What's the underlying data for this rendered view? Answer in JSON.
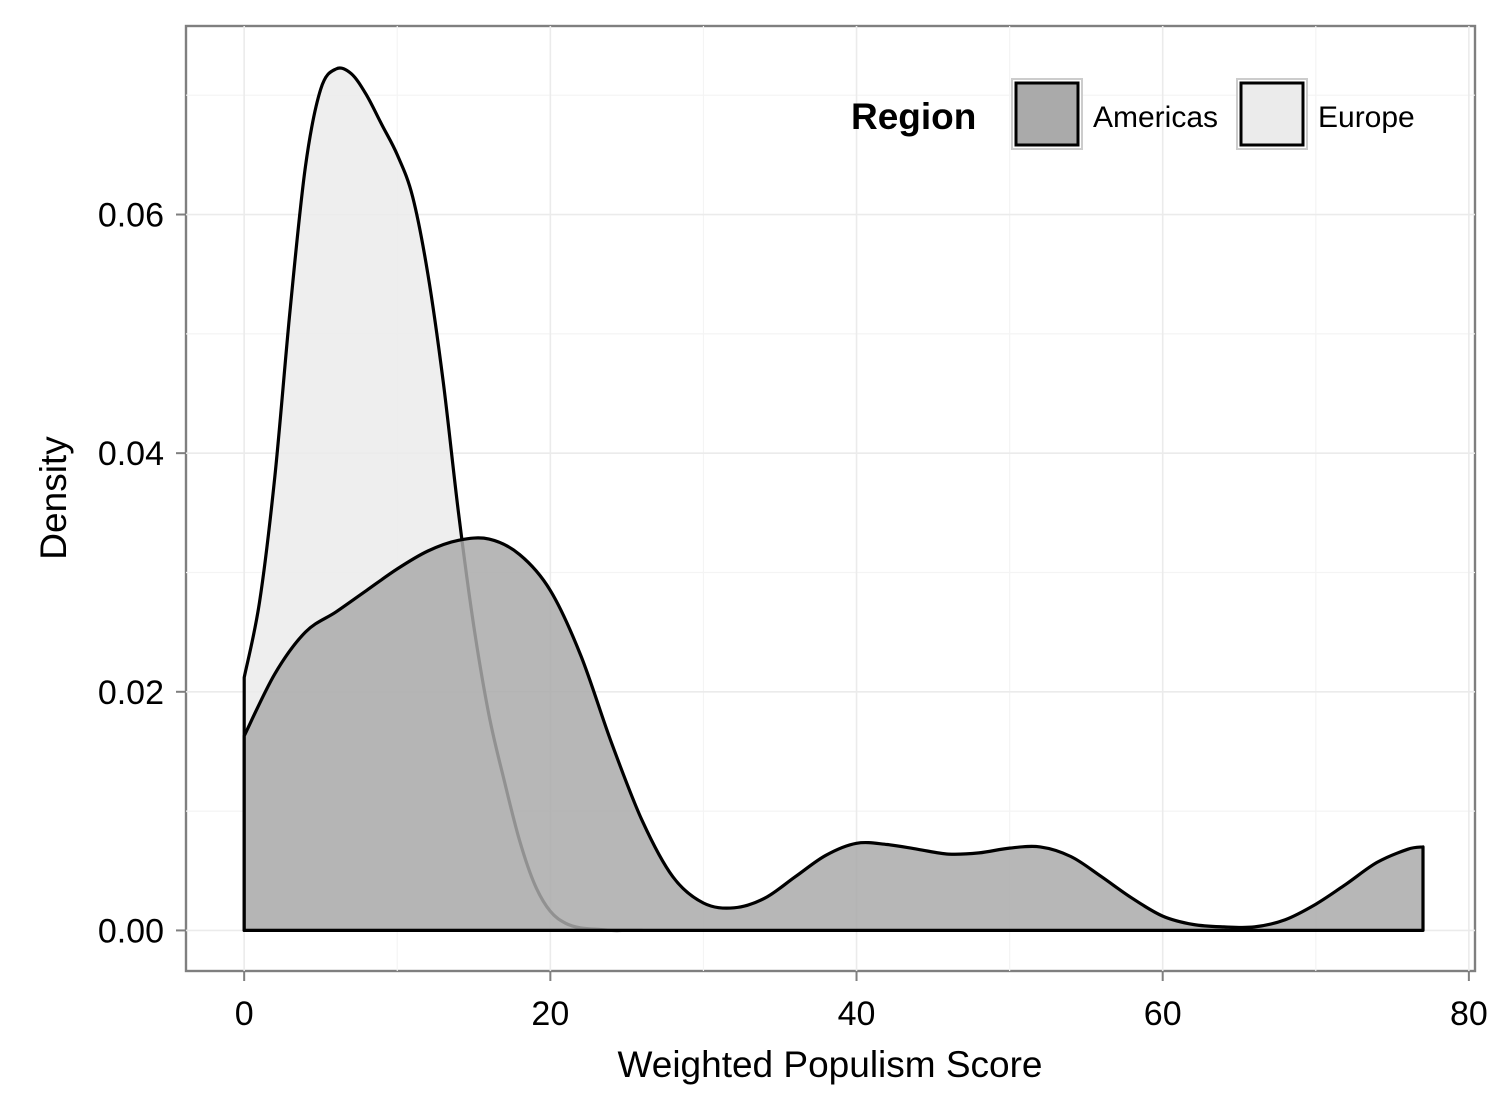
{
  "chart_data": {
    "type": "area",
    "title": "",
    "xlabel": "Weighted Populism Score",
    "ylabel": "Density",
    "xlim": [
      -3.8,
      80.4
    ],
    "ylim": [
      -0.0034,
      0.0758
    ],
    "xticks": [
      0,
      20,
      40,
      60,
      80
    ],
    "xtick_labels": [
      "0",
      "20",
      "40",
      "60",
      "80"
    ],
    "yticks": [
      0,
      0.02,
      0.04,
      0.06
    ],
    "ytick_labels": [
      "0.00",
      "0.02",
      "0.04",
      "0.06"
    ],
    "grid": true,
    "legend": {
      "title": "Region",
      "position": "top-right",
      "direction": "horizontal",
      "entries": [
        {
          "label": "Americas",
          "color": "#aaaaaa"
        },
        {
          "label": "Europe",
          "color": "#ebebeb"
        }
      ]
    },
    "series": [
      {
        "name": "Europe",
        "color": "#ebebeb",
        "opacity": 0.85,
        "x": [
          0,
          1,
          2,
          3,
          4,
          5,
          6,
          7,
          8,
          9,
          10,
          11,
          12,
          13,
          14,
          15,
          16,
          17,
          18,
          19,
          20,
          21,
          22,
          23,
          24,
          25,
          26
        ],
        "y": [
          0.0212,
          0.0275,
          0.038,
          0.052,
          0.064,
          0.0705,
          0.0722,
          0.0718,
          0.07,
          0.0675,
          0.065,
          0.0615,
          0.055,
          0.046,
          0.035,
          0.0255,
          0.018,
          0.0125,
          0.0075,
          0.0038,
          0.0016,
          0.0006,
          0.0002,
          0.0001,
          0.0,
          0.0,
          0.0
        ]
      },
      {
        "name": "Americas",
        "color": "#aaaaaa",
        "opacity": 0.85,
        "x": [
          0,
          2,
          4,
          6,
          8,
          10,
          12,
          14,
          16,
          18,
          20,
          22,
          24,
          26,
          28,
          30,
          32,
          34,
          36,
          38,
          40,
          42,
          44,
          46,
          48,
          50,
          52,
          54,
          56,
          58,
          60,
          62,
          64,
          66,
          68,
          70,
          72,
          74,
          76,
          77
        ],
        "y": [
          0.0163,
          0.0215,
          0.025,
          0.0267,
          0.0285,
          0.0303,
          0.0318,
          0.0327,
          0.0328,
          0.0315,
          0.0285,
          0.023,
          0.0157,
          0.0092,
          0.0045,
          0.0023,
          0.0019,
          0.0027,
          0.0045,
          0.0063,
          0.0073,
          0.0072,
          0.0068,
          0.0064,
          0.0065,
          0.0069,
          0.007,
          0.0062,
          0.0045,
          0.0027,
          0.0012,
          0.0005,
          0.0003,
          0.0003,
          0.0009,
          0.0022,
          0.0039,
          0.0057,
          0.0068,
          0.007
        ]
      }
    ]
  }
}
